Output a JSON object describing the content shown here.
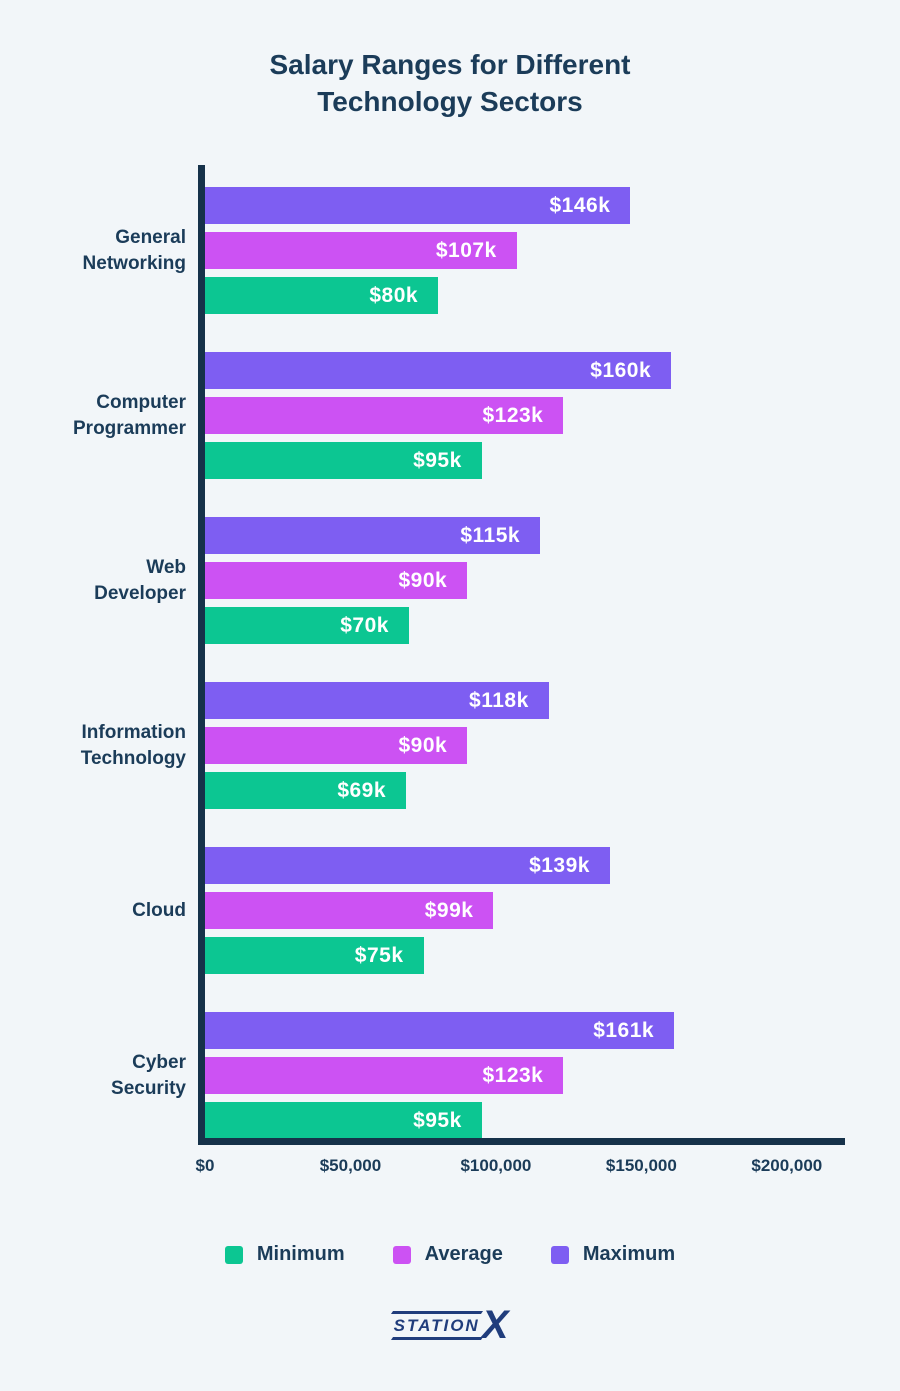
{
  "colors": {
    "background": "#f2f6f9",
    "text": "#1b3c59",
    "axis": "#16324a",
    "maximum": "#7e5ef2",
    "average": "#cc52f3",
    "minimum": "#0cc692",
    "logo": "#203d7c",
    "bar_label": "#ffffff"
  },
  "title": {
    "line1": "Salary Ranges for Different",
    "line2": "Technology Sectors"
  },
  "chart_data": {
    "type": "bar",
    "orientation": "horizontal",
    "title": "Salary Ranges for Different Technology Sectors",
    "categories": [
      "General\nNetworking",
      "Computer\nProgrammer",
      "Web\nDeveloper",
      "Information\nTechnology",
      "Cloud",
      "Cyber\nSecurity"
    ],
    "bar_order": [
      "Maximum",
      "Average",
      "Minimum"
    ],
    "series": [
      {
        "name": "Maximum",
        "color": "#7e5ef2",
        "values": [
          146000,
          160000,
          115000,
          118000,
          139000,
          161000
        ],
        "labels": [
          "$146k",
          "$160k",
          "$115k",
          "$118k",
          "$139k",
          "$161k"
        ]
      },
      {
        "name": "Average",
        "color": "#cc52f3",
        "values": [
          107000,
          123000,
          90000,
          90000,
          99000,
          123000
        ],
        "labels": [
          "$107k",
          "$123k",
          "$90k",
          "$90k",
          "$99k",
          "$123k"
        ]
      },
      {
        "name": "Minimum",
        "color": "#0cc692",
        "values": [
          80000,
          95000,
          70000,
          69000,
          75000,
          95000
        ],
        "labels": [
          "$80k",
          "$95k",
          "$70k",
          "$69k",
          "$75k",
          "$95k"
        ]
      }
    ],
    "x_ticks": [
      "$0",
      "$50,000",
      "$100,000",
      "$150,000",
      "$200,000"
    ],
    "x_tick_values": [
      0,
      50000,
      100000,
      150000,
      200000
    ],
    "xlim": [
      0,
      220000
    ],
    "grid": false,
    "legend_position": "bottom",
    "legend": [
      {
        "label": "Minimum",
        "color": "#0cc692"
      },
      {
        "label": "Average",
        "color": "#cc52f3"
      },
      {
        "label": "Maximum",
        "color": "#7e5ef2"
      }
    ]
  },
  "footer": {
    "brand_word": "STATION",
    "brand_x": "X"
  }
}
